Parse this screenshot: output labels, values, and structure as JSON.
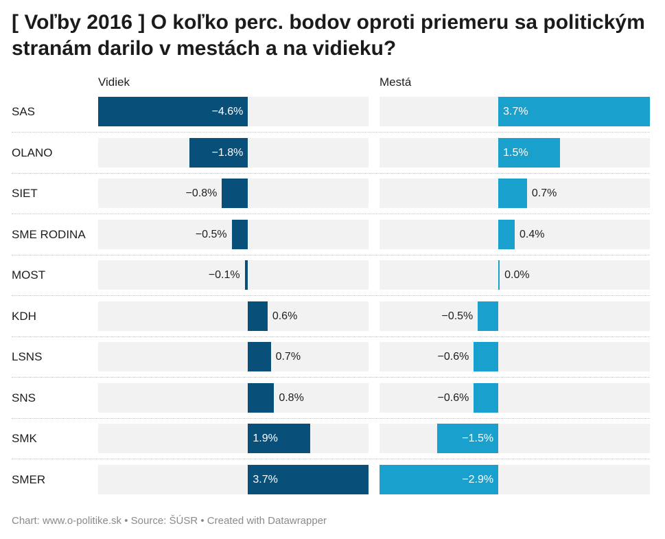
{
  "title": "[ Voľby 2016 ] O koľko perc. bodov oproti priemeru sa politickým stranám darilo v mestách a na vidieku?",
  "footer": {
    "chart": "Chart: www.o-politike.sk",
    "sep1": " • ",
    "source": "Source: ŠÚSR",
    "sep2": " • ",
    "created": "Created with Datawrapper"
  },
  "colors": {
    "vidiek": "#08507a",
    "mesta": "#19a0cc",
    "panel_bg": "#f2f2f2"
  },
  "chart_data": {
    "type": "bar",
    "orientation": "horizontal",
    "title": "[ Voľby 2016 ] O koľko perc. bodov oproti priemeru sa politickým stranám darilo v mestách a na vidieku?",
    "categories": [
      "SAS",
      "OLANO",
      "SIET",
      "SME RODINA",
      "MOST",
      "KDH",
      "LSNS",
      "SNS",
      "SMK",
      "SMER"
    ],
    "series": [
      {
        "name": "Vidiek",
        "values": [
          -4.6,
          -1.8,
          -0.8,
          -0.5,
          -0.1,
          0.6,
          0.7,
          0.8,
          1.9,
          3.7
        ],
        "labels": [
          "−4.6%",
          "−1.8%",
          "−0.8%",
          "−0.5%",
          "−0.1%",
          "0.6%",
          "0.7%",
          "0.8%",
          "1.9%",
          "3.7%"
        ],
        "range": [
          -4.6,
          3.7
        ]
      },
      {
        "name": "Mestá",
        "values": [
          3.7,
          1.5,
          0.7,
          0.4,
          0.0,
          -0.5,
          -0.6,
          -0.6,
          -1.5,
          -2.9
        ],
        "labels": [
          "3.7%",
          "1.5%",
          "0.7%",
          "0.4%",
          "0.0%",
          "−0.5%",
          "−0.6%",
          "−0.6%",
          "−1.5%",
          "−2.9%"
        ],
        "range": [
          -2.9,
          3.7
        ]
      }
    ]
  }
}
